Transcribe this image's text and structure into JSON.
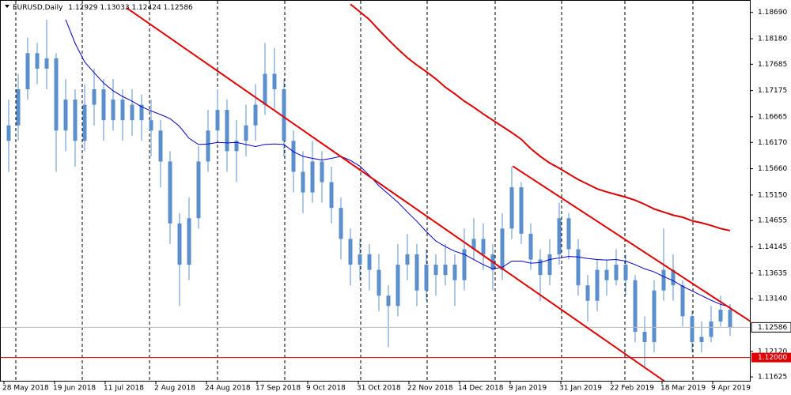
{
  "chart_data": {
    "type": "candlestick",
    "symbol": "EURUSD,Daily",
    "candle_color": "#5b8fcb",
    "ylim": [
      1.1155,
      1.1893
    ],
    "yticks": [
      {
        "value": 1.1869,
        "label": "1.18690"
      },
      {
        "value": 1.1818,
        "label": "1.18180"
      },
      {
        "value": 1.17685,
        "label": "1.17685"
      },
      {
        "value": 1.17175,
        "label": "1.17175"
      },
      {
        "value": 1.16665,
        "label": "1.16665"
      },
      {
        "value": 1.1617,
        "label": "1.16170"
      },
      {
        "value": 1.1566,
        "label": "1.15660"
      },
      {
        "value": 1.1515,
        "label": "1.15150"
      },
      {
        "value": 1.14655,
        "label": "1.14655"
      },
      {
        "value": 1.14145,
        "label": "1.14145"
      },
      {
        "value": 1.13635,
        "label": "1.13635"
      },
      {
        "value": 1.1314,
        "label": "1.13140"
      },
      {
        "value": 1.1212,
        "label": "1.12120"
      },
      {
        "value": 1.11625,
        "label": "1.11625"
      }
    ],
    "date_labels": [
      "28 May 2018",
      "19 Jun 2018",
      "11 Jul 2018",
      "2 Aug 2018",
      "24 Aug 2018",
      "17 Sep 2018",
      "9 Oct 2018",
      "31 Oct 2018",
      "22 Nov 2018",
      "14 Dec 2018",
      "9 Jan 2019",
      "31 Jan 2019",
      "22 Feb 2019",
      "18 Mar 2019",
      "9 Apr 2019"
    ],
    "ohlc": [
      [
        1.162,
        1.17,
        1.156,
        1.165
      ],
      [
        1.165,
        1.175,
        1.162,
        1.172
      ],
      [
        1.172,
        1.182,
        1.17,
        1.179
      ],
      [
        1.179,
        1.181,
        1.173,
        1.176
      ],
      [
        1.176,
        1.1855,
        1.172,
        1.178
      ],
      [
        1.178,
        1.179,
        1.156,
        1.164
      ],
      [
        1.164,
        1.174,
        1.16,
        1.17
      ],
      [
        1.17,
        1.172,
        1.157,
        1.162
      ],
      [
        1.162,
        1.173,
        1.16,
        1.169
      ],
      [
        1.169,
        1.176,
        1.165,
        1.172
      ],
      [
        1.172,
        1.174,
        1.162,
        1.166
      ],
      [
        1.166,
        1.174,
        1.164,
        1.17
      ],
      [
        1.17,
        1.172,
        1.162,
        1.166
      ],
      [
        1.166,
        1.172,
        1.163,
        1.169
      ],
      [
        1.169,
        1.171,
        1.162,
        1.166
      ],
      [
        1.166,
        1.17,
        1.159,
        1.164
      ],
      [
        1.164,
        1.166,
        1.153,
        1.158
      ],
      [
        1.158,
        1.16,
        1.142,
        1.146
      ],
      [
        1.146,
        1.148,
        1.13,
        1.138
      ],
      [
        1.138,
        1.151,
        1.135,
        1.147
      ],
      [
        1.147,
        1.161,
        1.145,
        1.158
      ],
      [
        1.158,
        1.168,
        1.156,
        1.164
      ],
      [
        1.164,
        1.172,
        1.162,
        1.168
      ],
      [
        1.168,
        1.17,
        1.156,
        1.16
      ],
      [
        1.16,
        1.166,
        1.154,
        1.162
      ],
      [
        1.162,
        1.169,
        1.159,
        1.165
      ],
      [
        1.165,
        1.173,
        1.162,
        1.169
      ],
      [
        1.169,
        1.181,
        1.167,
        1.175
      ],
      [
        1.175,
        1.18,
        1.168,
        1.172
      ],
      [
        1.172,
        1.174,
        1.159,
        1.162
      ],
      [
        1.162,
        1.164,
        1.152,
        1.156
      ],
      [
        1.156,
        1.16,
        1.148,
        1.152
      ],
      [
        1.152,
        1.162,
        1.15,
        1.158
      ],
      [
        1.158,
        1.16,
        1.15,
        1.154
      ],
      [
        1.154,
        1.157,
        1.146,
        1.149
      ],
      [
        1.149,
        1.151,
        1.139,
        1.143
      ],
      [
        1.143,
        1.145,
        1.134,
        1.138
      ],
      [
        1.138,
        1.143,
        1.135,
        1.14
      ],
      [
        1.14,
        1.142,
        1.133,
        1.137
      ],
      [
        1.137,
        1.14,
        1.129,
        1.132
      ],
      [
        1.132,
        1.134,
        1.122,
        1.13
      ],
      [
        1.13,
        1.142,
        1.128,
        1.138
      ],
      [
        1.138,
        1.144,
        1.135,
        1.14
      ],
      [
        1.14,
        1.142,
        1.13,
        1.133
      ],
      [
        1.133,
        1.141,
        1.131,
        1.138
      ],
      [
        1.138,
        1.14,
        1.132,
        1.136
      ],
      [
        1.136,
        1.142,
        1.134,
        1.138
      ],
      [
        1.138,
        1.14,
        1.13,
        1.135
      ],
      [
        1.135,
        1.145,
        1.133,
        1.141
      ],
      [
        1.141,
        1.147,
        1.139,
        1.143
      ],
      [
        1.143,
        1.146,
        1.137,
        1.14
      ],
      [
        1.14,
        1.142,
        1.133,
        1.137
      ],
      [
        1.137,
        1.148,
        1.135,
        1.145
      ],
      [
        1.145,
        1.157,
        1.143,
        1.153
      ],
      [
        1.153,
        1.154,
        1.142,
        1.144
      ],
      [
        1.144,
        1.146,
        1.137,
        1.139
      ],
      [
        1.139,
        1.141,
        1.131,
        1.136
      ],
      [
        1.136,
        1.143,
        1.134,
        1.14
      ],
      [
        1.14,
        1.15,
        1.138,
        1.147
      ],
      [
        1.147,
        1.148,
        1.139,
        1.141
      ],
      [
        1.141,
        1.143,
        1.132,
        1.134
      ],
      [
        1.134,
        1.136,
        1.127,
        1.131
      ],
      [
        1.131,
        1.139,
        1.129,
        1.137
      ],
      [
        1.137,
        1.139,
        1.132,
        1.135
      ],
      [
        1.135,
        1.141,
        1.134,
        1.138
      ],
      [
        1.138,
        1.14,
        1.132,
        1.135
      ],
      [
        1.135,
        1.136,
        1.123,
        1.125
      ],
      [
        1.125,
        1.128,
        1.118,
        1.123
      ],
      [
        1.123,
        1.135,
        1.121,
        1.133
      ],
      [
        1.133,
        1.145,
        1.131,
        1.137
      ],
      [
        1.137,
        1.14,
        1.131,
        1.134
      ],
      [
        1.134,
        1.135,
        1.126,
        1.128
      ],
      [
        1.128,
        1.129,
        1.121,
        1.123
      ],
      [
        1.123,
        1.127,
        1.121,
        1.124
      ],
      [
        1.124,
        1.13,
        1.123,
        1.127
      ],
      [
        1.127,
        1.132,
        1.126,
        1.12929
      ],
      [
        1.12929,
        1.13033,
        1.12424,
        1.12586
      ]
    ],
    "series": [
      {
        "color": "#0000cc",
        "values": [
          null,
          null,
          null,
          null,
          null,
          null,
          1.1855,
          1.1809,
          1.1773,
          1.1752,
          1.1732,
          1.1717,
          1.1706,
          1.1697,
          1.1686,
          1.1678,
          1.1671,
          1.1663,
          1.1648,
          1.1625,
          1.1613,
          1.1614,
          1.1617,
          1.1616,
          1.1617,
          1.1613,
          1.1609,
          1.1613,
          1.1614,
          1.1613,
          1.1599,
          1.159,
          1.1586,
          1.1583,
          1.1586,
          1.159,
          1.1582,
          1.1571,
          1.1553,
          1.1533,
          1.1517,
          1.1501,
          1.1482,
          1.1464,
          1.1444,
          1.1426,
          1.1415,
          1.1406,
          1.14,
          1.139,
          1.138,
          1.1372,
          1.1375,
          1.1387,
          1.1387,
          1.1383,
          1.1384,
          1.139,
          1.1393,
          1.1396,
          1.1395,
          1.1392,
          1.139,
          1.1389,
          1.139,
          1.1387,
          1.138,
          1.1372,
          1.1366,
          1.1357,
          1.1349,
          1.1338,
          1.1329,
          1.132,
          1.1311,
          1.1303,
          1.1298
        ]
      },
      {
        "color": "#dd0000",
        "values": [
          null,
          null,
          null,
          null,
          null,
          null,
          null,
          null,
          null,
          null,
          null,
          null,
          null,
          null,
          null,
          null,
          null,
          null,
          null,
          null,
          null,
          null,
          null,
          null,
          null,
          null,
          null,
          null,
          null,
          null,
          null,
          null,
          null,
          null,
          null,
          null,
          1.1885,
          1.187,
          1.1855,
          1.1835,
          1.1816,
          1.1798,
          1.1781,
          1.1767,
          1.1754,
          1.174,
          1.1724,
          1.1711,
          1.1697,
          1.1685,
          1.1672,
          1.166,
          1.1648,
          1.1636,
          1.1623,
          1.1605,
          1.159,
          1.1577,
          1.1567,
          1.1556,
          1.1545,
          1.1536,
          1.1527,
          1.1521,
          1.1516,
          1.1511,
          1.1505,
          1.1497,
          1.1488,
          1.1482,
          1.1476,
          1.1472,
          1.1465,
          1.1461,
          1.1456,
          1.145,
          1.1446
        ]
      }
    ],
    "trendlines": [
      {
        "color": "#e00000",
        "x": [
          12.4,
          69.1
        ],
        "y": [
          1.1878,
          1.1154
        ]
      },
      {
        "color": "#e00000",
        "x": [
          53.1,
          82.4
        ],
        "y": [
          1.1571,
          1.1219
        ]
      }
    ],
    "hline": {
      "value": 1.12,
      "label": "1.12000",
      "color": "#e00000"
    }
  }
}
